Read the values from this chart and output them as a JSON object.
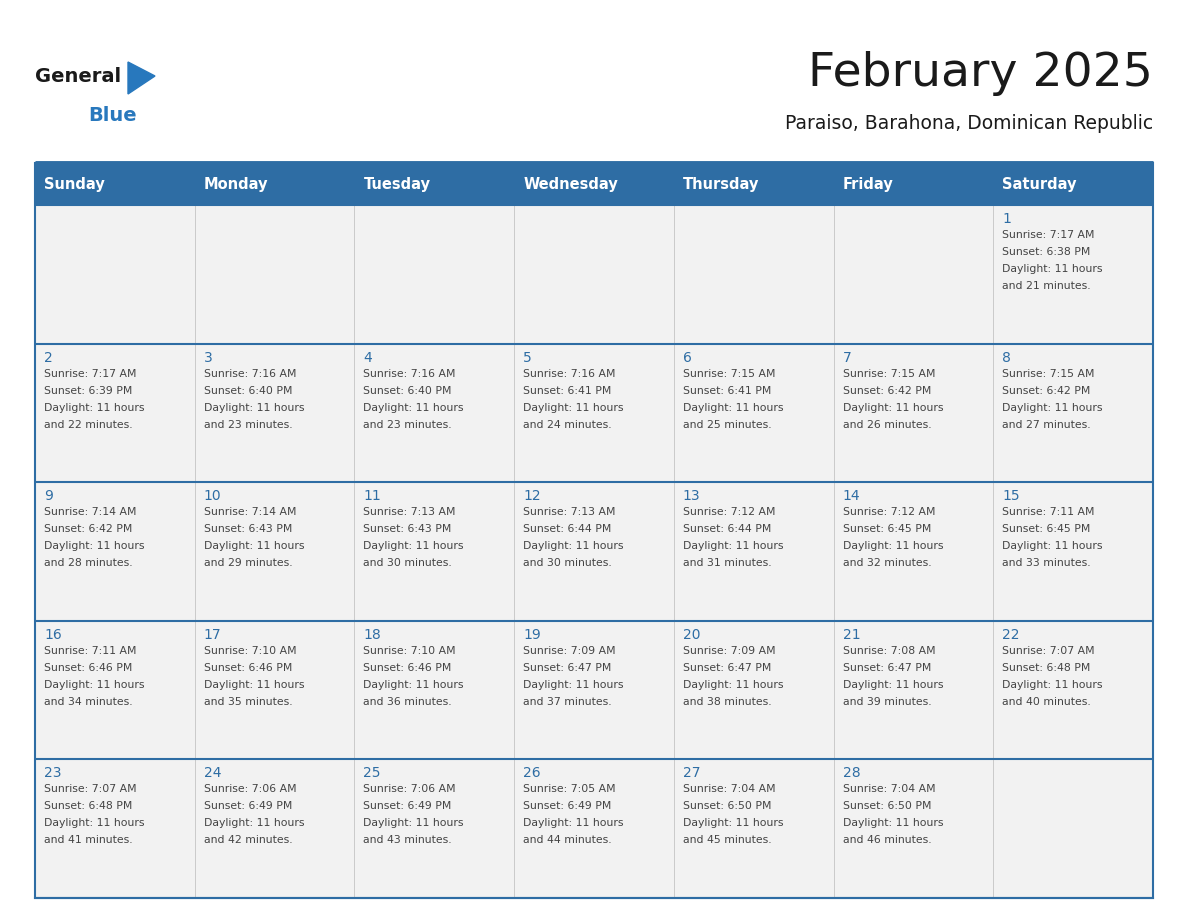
{
  "title": "February 2025",
  "subtitle": "Paraiso, Barahona, Dominican Republic",
  "days_of_week": [
    "Sunday",
    "Monday",
    "Tuesday",
    "Wednesday",
    "Thursday",
    "Friday",
    "Saturday"
  ],
  "header_bg": "#2E6DA4",
  "header_text": "#FFFFFF",
  "cell_bg": "#F2F2F2",
  "border_color": "#2E6DA4",
  "row_border_color": "#2E6DA4",
  "day_num_color": "#2E6DA4",
  "text_color": "#444444",
  "logo_general_color": "#1a1a1a",
  "logo_blue_color": "#2878BD",
  "calendar_data": [
    [
      {
        "day": null,
        "sunrise": null,
        "sunset": null,
        "daylight": null
      },
      {
        "day": null,
        "sunrise": null,
        "sunset": null,
        "daylight": null
      },
      {
        "day": null,
        "sunrise": null,
        "sunset": null,
        "daylight": null
      },
      {
        "day": null,
        "sunrise": null,
        "sunset": null,
        "daylight": null
      },
      {
        "day": null,
        "sunrise": null,
        "sunset": null,
        "daylight": null
      },
      {
        "day": null,
        "sunrise": null,
        "sunset": null,
        "daylight": null
      },
      {
        "day": 1,
        "sunrise": "7:17 AM",
        "sunset": "6:38 PM",
        "daylight": "11 hours\nand 21 minutes."
      }
    ],
    [
      {
        "day": 2,
        "sunrise": "7:17 AM",
        "sunset": "6:39 PM",
        "daylight": "11 hours\nand 22 minutes."
      },
      {
        "day": 3,
        "sunrise": "7:16 AM",
        "sunset": "6:40 PM",
        "daylight": "11 hours\nand 23 minutes."
      },
      {
        "day": 4,
        "sunrise": "7:16 AM",
        "sunset": "6:40 PM",
        "daylight": "11 hours\nand 23 minutes."
      },
      {
        "day": 5,
        "sunrise": "7:16 AM",
        "sunset": "6:41 PM",
        "daylight": "11 hours\nand 24 minutes."
      },
      {
        "day": 6,
        "sunrise": "7:15 AM",
        "sunset": "6:41 PM",
        "daylight": "11 hours\nand 25 minutes."
      },
      {
        "day": 7,
        "sunrise": "7:15 AM",
        "sunset": "6:42 PM",
        "daylight": "11 hours\nand 26 minutes."
      },
      {
        "day": 8,
        "sunrise": "7:15 AM",
        "sunset": "6:42 PM",
        "daylight": "11 hours\nand 27 minutes."
      }
    ],
    [
      {
        "day": 9,
        "sunrise": "7:14 AM",
        "sunset": "6:42 PM",
        "daylight": "11 hours\nand 28 minutes."
      },
      {
        "day": 10,
        "sunrise": "7:14 AM",
        "sunset": "6:43 PM",
        "daylight": "11 hours\nand 29 minutes."
      },
      {
        "day": 11,
        "sunrise": "7:13 AM",
        "sunset": "6:43 PM",
        "daylight": "11 hours\nand 30 minutes."
      },
      {
        "day": 12,
        "sunrise": "7:13 AM",
        "sunset": "6:44 PM",
        "daylight": "11 hours\nand 30 minutes."
      },
      {
        "day": 13,
        "sunrise": "7:12 AM",
        "sunset": "6:44 PM",
        "daylight": "11 hours\nand 31 minutes."
      },
      {
        "day": 14,
        "sunrise": "7:12 AM",
        "sunset": "6:45 PM",
        "daylight": "11 hours\nand 32 minutes."
      },
      {
        "day": 15,
        "sunrise": "7:11 AM",
        "sunset": "6:45 PM",
        "daylight": "11 hours\nand 33 minutes."
      }
    ],
    [
      {
        "day": 16,
        "sunrise": "7:11 AM",
        "sunset": "6:46 PM",
        "daylight": "11 hours\nand 34 minutes."
      },
      {
        "day": 17,
        "sunrise": "7:10 AM",
        "sunset": "6:46 PM",
        "daylight": "11 hours\nand 35 minutes."
      },
      {
        "day": 18,
        "sunrise": "7:10 AM",
        "sunset": "6:46 PM",
        "daylight": "11 hours\nand 36 minutes."
      },
      {
        "day": 19,
        "sunrise": "7:09 AM",
        "sunset": "6:47 PM",
        "daylight": "11 hours\nand 37 minutes."
      },
      {
        "day": 20,
        "sunrise": "7:09 AM",
        "sunset": "6:47 PM",
        "daylight": "11 hours\nand 38 minutes."
      },
      {
        "day": 21,
        "sunrise": "7:08 AM",
        "sunset": "6:47 PM",
        "daylight": "11 hours\nand 39 minutes."
      },
      {
        "day": 22,
        "sunrise": "7:07 AM",
        "sunset": "6:48 PM",
        "daylight": "11 hours\nand 40 minutes."
      }
    ],
    [
      {
        "day": 23,
        "sunrise": "7:07 AM",
        "sunset": "6:48 PM",
        "daylight": "11 hours\nand 41 minutes."
      },
      {
        "day": 24,
        "sunrise": "7:06 AM",
        "sunset": "6:49 PM",
        "daylight": "11 hours\nand 42 minutes."
      },
      {
        "day": 25,
        "sunrise": "7:06 AM",
        "sunset": "6:49 PM",
        "daylight": "11 hours\nand 43 minutes."
      },
      {
        "day": 26,
        "sunrise": "7:05 AM",
        "sunset": "6:49 PM",
        "daylight": "11 hours\nand 44 minutes."
      },
      {
        "day": 27,
        "sunrise": "7:04 AM",
        "sunset": "6:50 PM",
        "daylight": "11 hours\nand 45 minutes."
      },
      {
        "day": 28,
        "sunrise": "7:04 AM",
        "sunset": "6:50 PM",
        "daylight": "11 hours\nand 46 minutes."
      },
      {
        "day": null,
        "sunrise": null,
        "sunset": null,
        "daylight": null
      }
    ]
  ]
}
